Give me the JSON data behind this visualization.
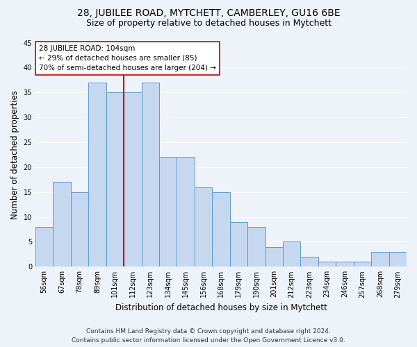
{
  "title": "28, JUBILEE ROAD, MYTCHETT, CAMBERLEY, GU16 6BE",
  "subtitle": "Size of property relative to detached houses in Mytchett",
  "xlabel": "Distribution of detached houses by size in Mytchett",
  "ylabel": "Number of detached properties",
  "categories": [
    "56sqm",
    "67sqm",
    "78sqm",
    "89sqm",
    "101sqm",
    "112sqm",
    "123sqm",
    "134sqm",
    "145sqm",
    "156sqm",
    "168sqm",
    "179sqm",
    "190sqm",
    "201sqm",
    "212sqm",
    "223sqm",
    "234sqm",
    "246sqm",
    "257sqm",
    "268sqm",
    "279sqm"
  ],
  "values": [
    8,
    17,
    15,
    37,
    35,
    35,
    37,
    22,
    22,
    16,
    15,
    9,
    8,
    4,
    5,
    2,
    1,
    1,
    1,
    3,
    3
  ],
  "bar_color": "#c5d8f0",
  "bar_edge_color": "#5b9bd5",
  "vline_color": "#cc0000",
  "annotation_text": "28 JUBILEE ROAD: 104sqm\n← 29% of detached houses are smaller (85)\n70% of semi-detached houses are larger (204) →",
  "annotation_box_color": "white",
  "annotation_box_edge": "#cc0000",
  "ylim": [
    0,
    45
  ],
  "yticks": [
    0,
    5,
    10,
    15,
    20,
    25,
    30,
    35,
    40,
    45
  ],
  "footer_line1": "Contains HM Land Registry data © Crown copyright and database right 2024.",
  "footer_line2": "Contains public sector information licensed under the Open Government Licence v3.0.",
  "background_color": "#eef2f9",
  "grid_color": "#ffffff",
  "title_fontsize": 10,
  "subtitle_fontsize": 9,
  "xlabel_fontsize": 8.5,
  "ylabel_fontsize": 8.5,
  "tick_fontsize": 7,
  "annotation_fontsize": 7.5,
  "footer_fontsize": 6.5,
  "vline_x": 4.5
}
